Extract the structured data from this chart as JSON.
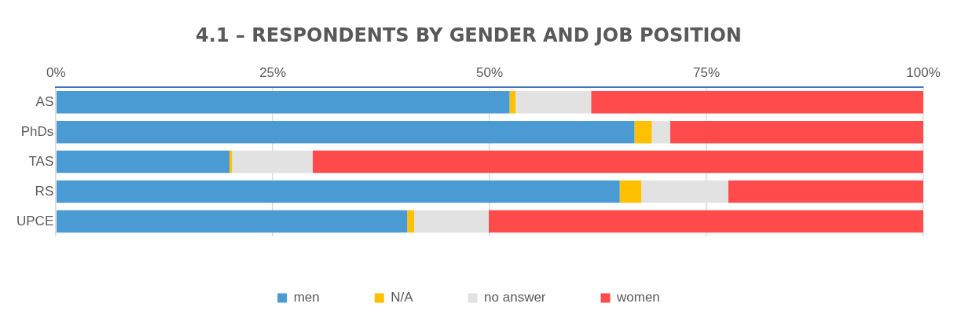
{
  "chart_data": {
    "type": "bar",
    "orientation": "horizontal",
    "stacked": true,
    "title": "4.1 – RESPONDENTS BY GENDER AND JOB POSITION",
    "categories": [
      "AS",
      "PhDs",
      "TAS",
      "RS",
      "UPCE"
    ],
    "series": [
      {
        "name": "men",
        "color": "#4a9ad4",
        "values": [
          52.3,
          66.7,
          20.0,
          65.0,
          40.5
        ]
      },
      {
        "name": "N/A",
        "color": "#ffc000",
        "values": [
          0.7,
          2.0,
          0.3,
          2.5,
          0.8
        ]
      },
      {
        "name": "no answer",
        "color": "#e2e2e2",
        "values": [
          8.7,
          2.1,
          9.3,
          10.0,
          8.6
        ]
      },
      {
        "name": "women",
        "color": "#ff4b4b",
        "values": [
          38.3,
          29.2,
          70.4,
          22.5,
          50.1
        ]
      }
    ],
    "xlim": [
      0,
      100
    ],
    "xticks": [
      {
        "value": 0,
        "label": "0%"
      },
      {
        "value": 25,
        "label": "25%"
      },
      {
        "value": 50,
        "label": "50%"
      },
      {
        "value": 75,
        "label": "75%"
      },
      {
        "value": 100,
        "label": "100%"
      }
    ],
    "grid": "x",
    "legend": "bottom"
  }
}
